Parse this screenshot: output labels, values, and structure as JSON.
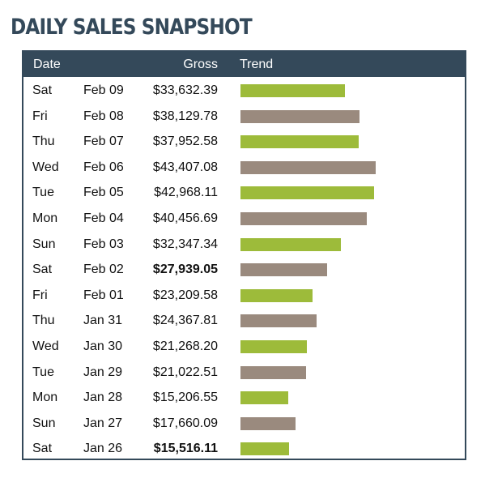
{
  "title": "DAILY SALES SNAPSHOT",
  "headers": {
    "date": "Date",
    "gross": "Gross",
    "trend": "Trend"
  },
  "colors": {
    "header_bg": "#34495a",
    "bar_green": "#9dbb3a",
    "bar_taupe": "#9a8a7e"
  },
  "chart_data": {
    "type": "table",
    "columns": [
      "Date",
      "Gross",
      "Trend"
    ],
    "rows": [
      {
        "day": "Sat",
        "date": "Feb 09",
        "gross": "$33,632.39",
        "value": 33632.39,
        "bold": false
      },
      {
        "day": "Fri",
        "date": "Feb 08",
        "gross": "$38,129.78",
        "value": 38129.78,
        "bold": false
      },
      {
        "day": "Thu",
        "date": "Feb 07",
        "gross": "$37,952.58",
        "value": 37952.58,
        "bold": false
      },
      {
        "day": "Wed",
        "date": "Feb 06",
        "gross": "$43,407.08",
        "value": 43407.08,
        "bold": false
      },
      {
        "day": "Tue",
        "date": "Feb 05",
        "gross": "$42,968.11",
        "value": 42968.11,
        "bold": false
      },
      {
        "day": "Mon",
        "date": "Feb 04",
        "gross": "$40,456.69",
        "value": 40456.69,
        "bold": false
      },
      {
        "day": "Sun",
        "date": "Feb 03",
        "gross": "$32,347.34",
        "value": 32347.34,
        "bold": false
      },
      {
        "day": "Sat",
        "date": "Feb 02",
        "gross": "$27,939.05",
        "value": 27939.05,
        "bold": true
      },
      {
        "day": "Fri",
        "date": "Feb 01",
        "gross": "$23,209.58",
        "value": 23209.58,
        "bold": false
      },
      {
        "day": "Thu",
        "date": "Jan 31",
        "gross": "$24,367.81",
        "value": 24367.81,
        "bold": false
      },
      {
        "day": "Wed",
        "date": "Jan 30",
        "gross": "$21,268.20",
        "value": 21268.2,
        "bold": false
      },
      {
        "day": "Tue",
        "date": "Jan 29",
        "gross": "$21,022.51",
        "value": 21022.51,
        "bold": false
      },
      {
        "day": "Mon",
        "date": "Jan 28",
        "gross": "$15,206.55",
        "value": 15206.55,
        "bold": false
      },
      {
        "day": "Sun",
        "date": "Jan 27",
        "gross": "$17,660.09",
        "value": 17660.09,
        "bold": false
      },
      {
        "day": "Sat",
        "date": "Jan 26",
        "gross": "$15,516.11",
        "value": 15516.11,
        "bold": true
      }
    ]
  }
}
